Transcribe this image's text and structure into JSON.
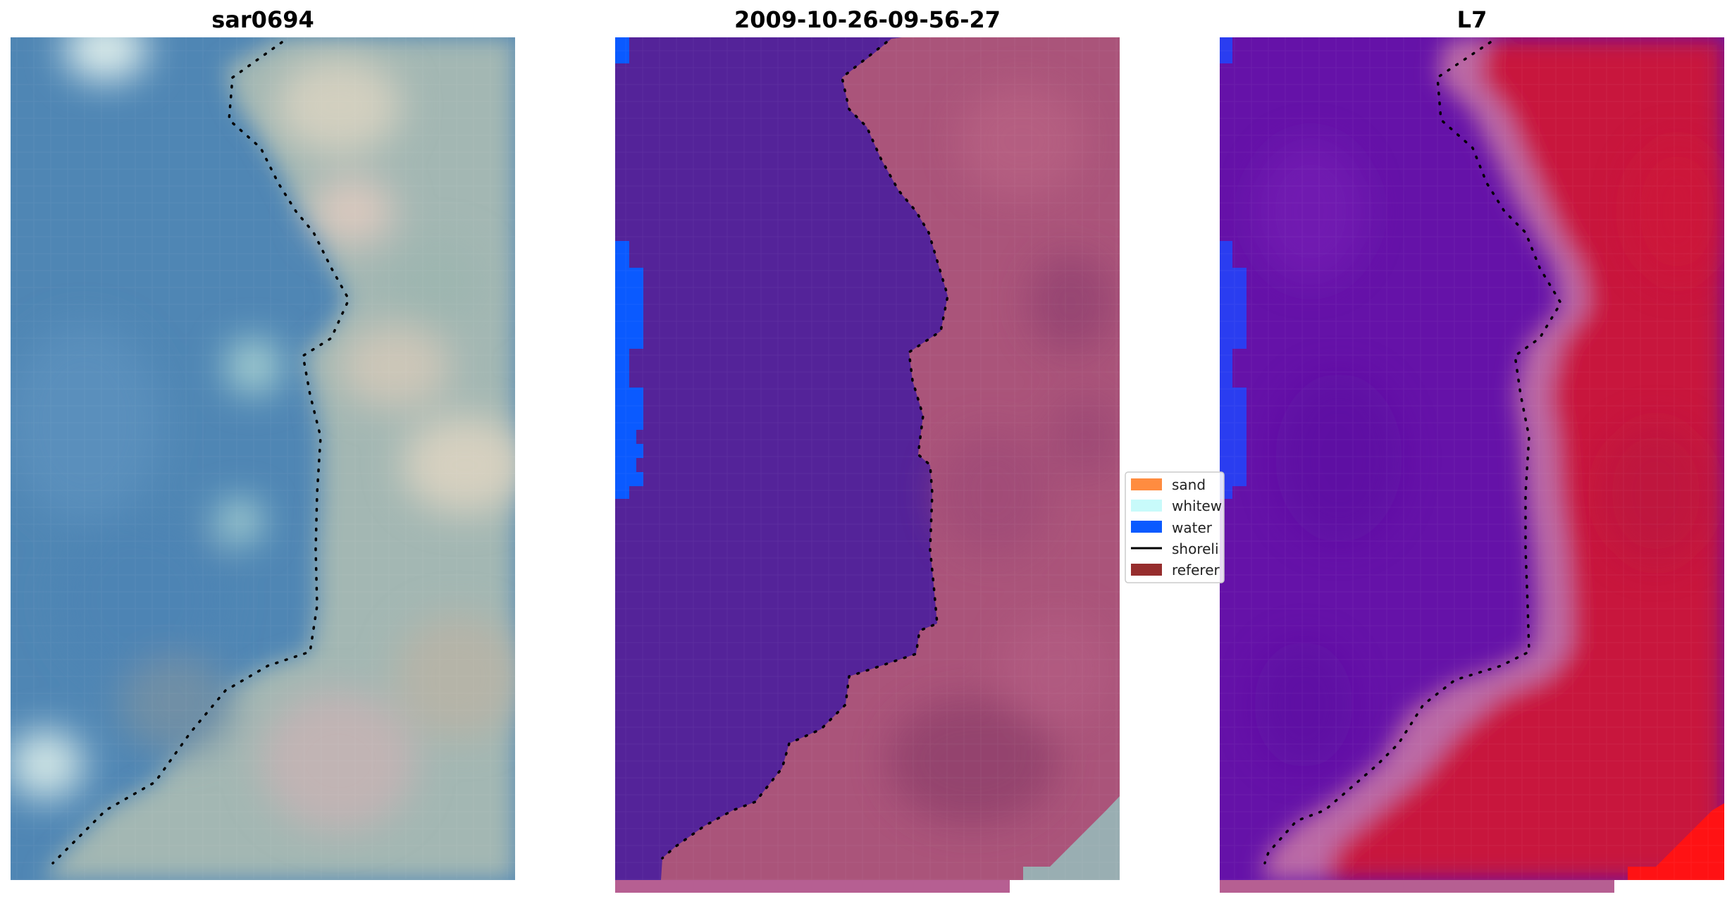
{
  "figure": {
    "panels": [
      {
        "id": "rgb",
        "title": "sar0694"
      },
      {
        "id": "classified",
        "title": "2009-10-26-09-56-27"
      },
      {
        "id": "index",
        "title": "L7"
      }
    ],
    "legend": {
      "placement": "center, between middle and right panel",
      "items": [
        {
          "label": "sand",
          "color": "#ff8c40",
          "kind": "patch"
        },
        {
          "label": "whitew",
          "color": "#c8fafa",
          "kind": "patch"
        },
        {
          "label": "water",
          "color": "#0a5aff",
          "kind": "patch"
        },
        {
          "label": "shoreli",
          "color": "#000000",
          "kind": "line"
        },
        {
          "label": "referer",
          "color": "#962d2d",
          "kind": "patch"
        }
      ]
    },
    "colors": {
      "rgb_water": "#4f86b4",
      "rgb_land": "#a3b7b3",
      "class_water": "#542399",
      "class_land": "#aa547a",
      "class_water_px": "#0a5aff",
      "index_water": "#6512a8",
      "index_land": "#c8153c",
      "shoreline": "#000000"
    }
  }
}
